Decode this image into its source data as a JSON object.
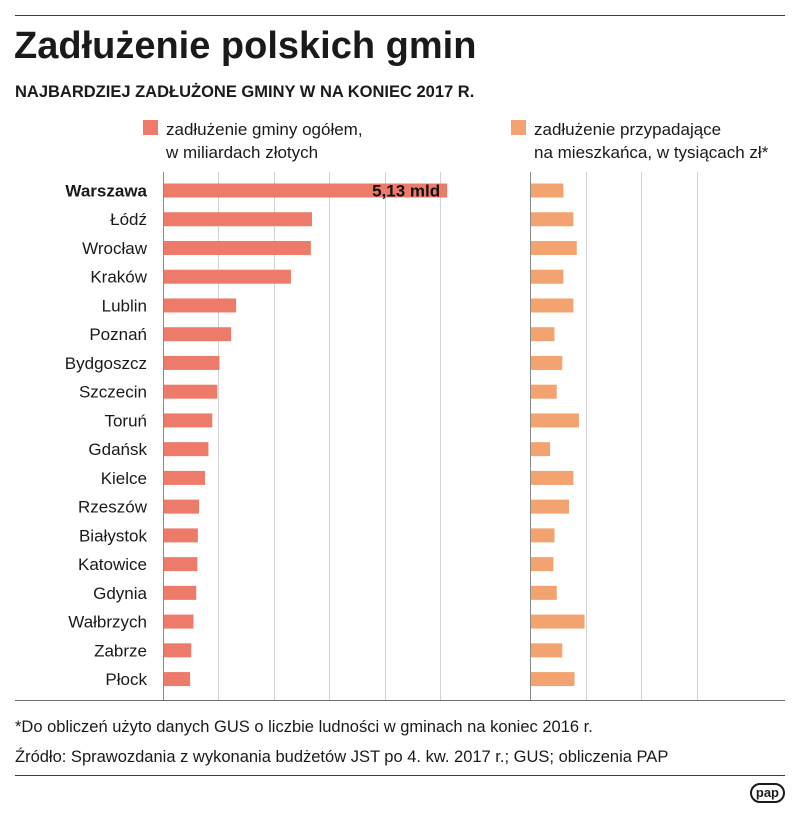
{
  "title": "Zadłużenie polskich gmin",
  "subtitle": "NAJBARDZIEJ ZADŁUŻONE GMINY W NA KONIEC 2017 R.",
  "footnote": "*Do obliczeń użyto danych GUS o liczbie ludności w gminach na koniec 2016 r.",
  "source": "Źródło: Sprawozdania z wykonania budżetów JST po 4. kw. 2017 r.; GUS; obliczenia PAP",
  "logo": "pap",
  "chart_data": {
    "type": "bar",
    "orientation": "horizontal",
    "legend_position": "top",
    "grid": true,
    "highlight_index": 0,
    "categories": [
      "Warszawa",
      "Łódź",
      "Wrocław",
      "Kraków",
      "Lublin",
      "Poznań",
      "Bydgoszcz",
      "Szczecin",
      "Toruń",
      "Gdańsk",
      "Kielce",
      "Rzeszów",
      "Białystok",
      "Katowice",
      "Gdynia",
      "Wałbrzych",
      "Zabrze",
      "Płock"
    ],
    "series": [
      {
        "name": "zadłużenie gminy ogółem,\nw miliardach złotych",
        "color": "#ee7b6a",
        "values": [
          5.13,
          2.69,
          2.67,
          2.31,
          1.32,
          1.23,
          1.02,
          0.98,
          0.89,
          0.82,
          0.76,
          0.65,
          0.63,
          0.62,
          0.6,
          0.55,
          0.51,
          0.49
        ],
        "xlim": [
          0,
          5.2
        ],
        "gridlines": [
          1,
          2,
          3,
          4,
          5
        ]
      },
      {
        "name": "zadłużenie przypadające\nna mieszkańca, w tysiącach zł*",
        "color": "#f3a36f",
        "values": [
          3.0,
          3.9,
          4.2,
          3.0,
          3.9,
          2.2,
          2.9,
          2.4,
          4.4,
          1.8,
          3.9,
          3.5,
          2.2,
          2.1,
          2.4,
          4.9,
          2.9,
          4.0
        ],
        "xlim": [
          0,
          15
        ],
        "gridlines": [
          5,
          10,
          15
        ]
      }
    ],
    "data_labels": [
      {
        "series_index": 0,
        "category_index": 0,
        "text": "5,13 mld"
      }
    ]
  }
}
